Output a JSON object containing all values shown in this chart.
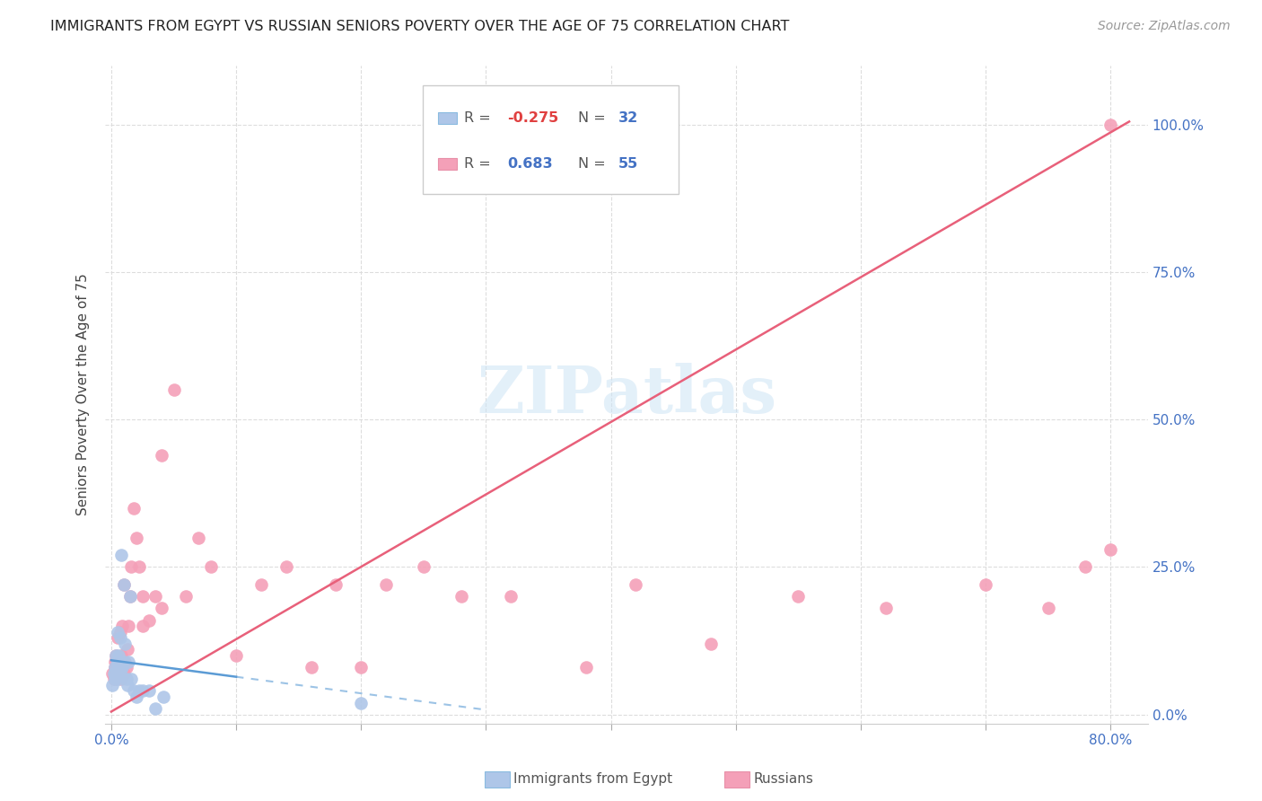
{
  "title": "IMMIGRANTS FROM EGYPT VS RUSSIAN SENIORS POVERTY OVER THE AGE OF 75 CORRELATION CHART",
  "source": "Source: ZipAtlas.com",
  "ylabel": "Seniors Poverty Over the Age of 75",
  "ytick_labels": [
    "0.0%",
    "25.0%",
    "50.0%",
    "75.0%",
    "100.0%"
  ],
  "ytick_values": [
    0.0,
    0.25,
    0.5,
    0.75,
    1.0
  ],
  "xtick_labels": [
    "0.0%",
    "",
    "",
    "",
    "",
    "",
    "",
    "",
    "80.0%"
  ],
  "xtick_values": [
    0.0,
    0.1,
    0.2,
    0.3,
    0.4,
    0.5,
    0.6,
    0.7,
    0.8
  ],
  "xlim": [
    -0.005,
    0.83
  ],
  "ylim": [
    -0.015,
    1.1
  ],
  "legend_r_egypt": "-0.275",
  "legend_n_egypt": "32",
  "legend_r_russian": "0.683",
  "legend_n_russian": "55",
  "egypt_color": "#aec6e8",
  "russian_color": "#f4a0b8",
  "egypt_line_color": "#5b9bd5",
  "russian_line_color": "#e8607a",
  "egypt_x": [
    0.001,
    0.002,
    0.003,
    0.003,
    0.004,
    0.004,
    0.005,
    0.005,
    0.005,
    0.006,
    0.006,
    0.007,
    0.007,
    0.008,
    0.008,
    0.009,
    0.01,
    0.01,
    0.011,
    0.012,
    0.013,
    0.014,
    0.015,
    0.016,
    0.018,
    0.02,
    0.022,
    0.025,
    0.03,
    0.035,
    0.042,
    0.2
  ],
  "egypt_y": [
    0.05,
    0.07,
    0.06,
    0.08,
    0.07,
    0.1,
    0.08,
    0.09,
    0.14,
    0.06,
    0.1,
    0.07,
    0.13,
    0.08,
    0.27,
    0.08,
    0.09,
    0.22,
    0.12,
    0.06,
    0.05,
    0.09,
    0.2,
    0.06,
    0.04,
    0.03,
    0.04,
    0.04,
    0.04,
    0.01,
    0.03,
    0.02
  ],
  "russian_x": [
    0.001,
    0.002,
    0.003,
    0.003,
    0.004,
    0.004,
    0.005,
    0.005,
    0.006,
    0.007,
    0.007,
    0.008,
    0.008,
    0.009,
    0.01,
    0.01,
    0.011,
    0.012,
    0.013,
    0.014,
    0.015,
    0.016,
    0.018,
    0.02,
    0.022,
    0.025,
    0.025,
    0.03,
    0.035,
    0.04,
    0.04,
    0.05,
    0.06,
    0.07,
    0.08,
    0.1,
    0.12,
    0.14,
    0.16,
    0.18,
    0.2,
    0.22,
    0.25,
    0.28,
    0.32,
    0.38,
    0.42,
    0.48,
    0.55,
    0.62,
    0.7,
    0.75,
    0.78,
    0.8,
    0.8
  ],
  "russian_y": [
    0.07,
    0.06,
    0.08,
    0.09,
    0.06,
    0.1,
    0.07,
    0.13,
    0.08,
    0.09,
    0.14,
    0.06,
    0.1,
    0.15,
    0.07,
    0.22,
    0.09,
    0.08,
    0.11,
    0.15,
    0.2,
    0.25,
    0.35,
    0.3,
    0.25,
    0.15,
    0.2,
    0.16,
    0.2,
    0.18,
    0.44,
    0.55,
    0.2,
    0.3,
    0.25,
    0.1,
    0.22,
    0.25,
    0.08,
    0.22,
    0.08,
    0.22,
    0.25,
    0.2,
    0.2,
    0.08,
    0.22,
    0.12,
    0.2,
    0.18,
    0.22,
    0.18,
    0.25,
    0.28,
    1.0
  ],
  "egypt_line": {
    "x0": 0.0,
    "y0": 0.092,
    "x1": 0.3,
    "y1": 0.008,
    "solid_end": 0.1
  },
  "russian_line": {
    "x0": 0.0,
    "y0": 0.005,
    "x1": 0.815,
    "y1": 1.005
  }
}
